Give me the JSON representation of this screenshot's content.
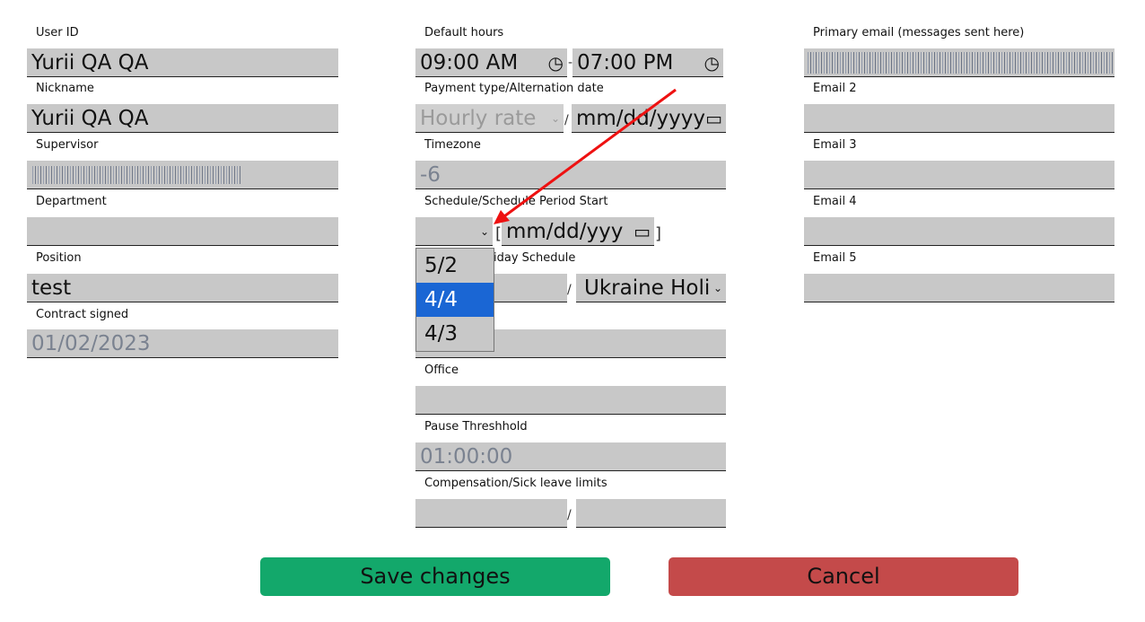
{
  "left": {
    "user_id": {
      "label": "User ID",
      "value": "Yurii QA QA"
    },
    "nickname": {
      "label": "Nickname",
      "value": "Yurii QA QA"
    },
    "supervisor": {
      "label": "Supervisor"
    },
    "department": {
      "label": "Department",
      "value": ""
    },
    "position": {
      "label": "Position",
      "value": "test"
    },
    "contract": {
      "label": "Contract signed",
      "value": "01/02/2023"
    }
  },
  "middle": {
    "hours": {
      "label": "Default hours",
      "start": "09:00 AM",
      "end": "07:00 PM",
      "sep": "-"
    },
    "payment": {
      "label": "Payment type/Alternation date",
      "type": "Hourly rate",
      "date": "mm/dd/yyyy",
      "sep": "/"
    },
    "timezone": {
      "label": "Timezone",
      "value": "-6"
    },
    "schedule": {
      "label": "Schedule/Schedule Period Start",
      "date": "mm/dd/yyy",
      "open": "[",
      "close": "]",
      "options": [
        "5/2",
        "4/4",
        "4/3"
      ],
      "highlighted": "4/4"
    },
    "holiday": {
      "label": "iday Schedule",
      "value": "Ukraine Holi",
      "sep": "/"
    },
    "office": {
      "label": "Office"
    },
    "pause": {
      "label": "Pause Threshhold",
      "value": "01:00:00"
    },
    "comp": {
      "label": "Compensation/Sick leave limits",
      "sep": "/"
    }
  },
  "right": {
    "primary": {
      "label": "Primary email (messages sent here)"
    },
    "email2": {
      "label": "Email 2"
    },
    "email3": {
      "label": "Email 3"
    },
    "email4": {
      "label": "Email 4"
    },
    "email5": {
      "label": "Email 5"
    }
  },
  "buttons": {
    "save": "Save changes",
    "cancel": "Cancel"
  },
  "colors": {
    "save": "#13a86b",
    "cancel": "#c44a4a",
    "highlight": "#1a66d4",
    "annotation_arrow": "#ee1111"
  }
}
